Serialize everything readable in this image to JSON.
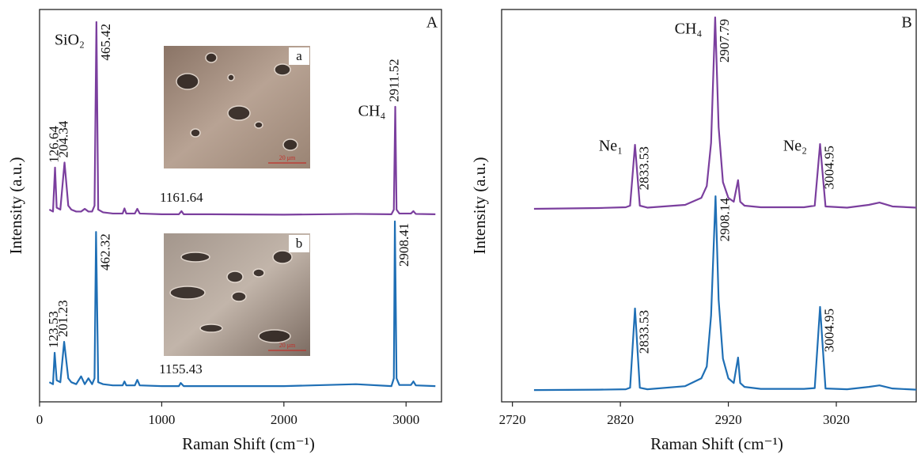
{
  "chart_data": [
    {
      "type": "line",
      "panel": "A",
      "x_label": "Raman Shift (cm⁻¹)",
      "y_label": "Intensity (a.u.)",
      "xlim": [
        0,
        3290
      ],
      "xticks": [
        0,
        1000,
        2000,
        3000
      ],
      "ylim": [
        0,
        100
      ],
      "series": [
        {
          "color": "#7b3f9e",
          "x": [
            80,
            110,
            126.64,
            140,
            170,
            204.34,
            235,
            260,
            300,
            340,
            370,
            400,
            430,
            450,
            465.42,
            480,
            520,
            600,
            680,
            695,
            710,
            780,
            800,
            820,
            1000,
            1140,
            1161.64,
            1180,
            1400,
            2000,
            2590,
            2880,
            2900,
            2911.52,
            2922,
            2945,
            3040,
            3060,
            3080,
            3240
          ],
          "values": [
            49,
            48.5,
            59.7,
            49.5,
            49,
            61,
            50,
            49,
            48.5,
            48.5,
            49.2,
            48.5,
            48.5,
            50,
            96.8,
            49,
            48.3,
            48,
            48,
            49.3,
            48,
            48,
            49.2,
            48,
            47.8,
            47.8,
            48.6,
            47.8,
            47.8,
            47.7,
            47.9,
            47.8,
            49,
            75.2,
            49,
            48,
            48,
            48.6,
            47.9,
            47.8
          ],
          "peak_labels": [
            {
              "value": 126.64,
              "label": "126.64"
            },
            {
              "value": 204.34,
              "label": "204.34"
            },
            {
              "value": 465.42,
              "label": "465.42"
            },
            {
              "value": 1161.64,
              "label": "1161.64"
            },
            {
              "value": 2911.52,
              "label": "2911.52"
            }
          ]
        },
        {
          "color": "#1f6fb5",
          "x": [
            80,
            110,
            123.53,
            140,
            170,
            201.23,
            235,
            260,
            300,
            340,
            370,
            400,
            430,
            450,
            462.32,
            480,
            520,
            600,
            680,
            695,
            710,
            780,
            800,
            820,
            1000,
            1140,
            1155.43,
            1180,
            1400,
            2000,
            2590,
            2880,
            2900,
            2908.41,
            2922,
            2945,
            3040,
            3060,
            3080,
            3240
          ],
          "values": [
            5,
            4.5,
            12.5,
            5.5,
            5,
            15.3,
            6,
            5,
            4.5,
            6.5,
            4.5,
            6,
            4.5,
            6,
            43.3,
            5,
            4.5,
            4.2,
            4.2,
            5.2,
            4.2,
            4.2,
            5.6,
            4.2,
            4,
            4,
            4.8,
            4,
            4,
            4,
            4.5,
            4,
            6,
            46,
            6,
            4.3,
            4.3,
            5.2,
            4.2,
            4
          ],
          "peak_labels": [
            {
              "value": 123.53,
              "label": "123.53"
            },
            {
              "value": 201.23,
              "label": "201.23"
            },
            {
              "value": 462.32,
              "label": "462.32"
            },
            {
              "value": 1155.43,
              "label": "1155.43"
            },
            {
              "value": 2908.41,
              "label": "2908.41"
            }
          ]
        }
      ],
      "annotations": [
        {
          "text": "SiO₂"
        },
        {
          "text": "CH₄"
        }
      ],
      "insets": [
        {
          "label": "a",
          "scale_text": "20 μm"
        },
        {
          "label": "b",
          "scale_text": "20 μm"
        }
      ]
    },
    {
      "type": "line",
      "panel": "B",
      "x_label": "Raman Shift (cm⁻¹)",
      "y_label": "Intensity (a.u.)",
      "xlim": [
        2710,
        3094
      ],
      "xticks": [
        2720,
        2820,
        2920,
        3020
      ],
      "ylim": [
        0,
        100
      ],
      "series": [
        {
          "color": "#7b3f9e",
          "x": [
            2740,
            2800,
            2825,
            2829,
            2833.53,
            2838,
            2845,
            2880,
            2895,
            2900,
            2904,
            2907.79,
            2911,
            2915,
            2920,
            2925,
            2929,
            2931,
            2935,
            2950,
            2990,
            3000,
            3004.95,
            3010,
            3030,
            3050,
            3060,
            3072,
            3094
          ],
          "values": [
            49.2,
            49.4,
            49.6,
            50,
            65.5,
            50,
            49.5,
            50.2,
            52,
            55,
            66,
            98,
            70,
            56,
            52,
            51,
            56.5,
            51,
            50,
            49.6,
            49.6,
            50,
            65.7,
            49.8,
            49.5,
            50.2,
            50.8,
            49.8,
            49.5
          ],
          "peak_labels": [
            {
              "value": 2833.53,
              "label": "2833.53"
            },
            {
              "value": 2907.79,
              "label": "2907.79"
            },
            {
              "value": 3004.95,
              "label": "3004.95"
            }
          ]
        },
        {
          "color": "#1f6fb5",
          "x": [
            2740,
            2800,
            2825,
            2829,
            2833.53,
            2838,
            2845,
            2880,
            2895,
            2900,
            2904,
            2908.14,
            2911,
            2915,
            2920,
            2925,
            2929,
            2931,
            2935,
            2950,
            2990,
            3000,
            3004.95,
            3010,
            3030,
            3050,
            3060,
            3072,
            3094
          ],
          "values": [
            3,
            3.1,
            3.2,
            3.6,
            23.8,
            3.6,
            3.2,
            4,
            6,
            9,
            22,
            52.4,
            26,
            11,
            6,
            4.8,
            11.3,
            4.8,
            3.8,
            3.3,
            3.3,
            3.5,
            24.2,
            3.4,
            3.2,
            3.8,
            4.2,
            3.4,
            3.1
          ],
          "peak_labels": [
            {
              "value": 2833.53,
              "label": "2833.53"
            },
            {
              "value": 2908.14,
              "label": "2908.14"
            },
            {
              "value": 3004.95,
              "label": "3004.95"
            }
          ]
        }
      ],
      "annotations": [
        {
          "text": "Ne₁"
        },
        {
          "text": "CH₄"
        },
        {
          "text": "Ne₂"
        }
      ]
    }
  ]
}
